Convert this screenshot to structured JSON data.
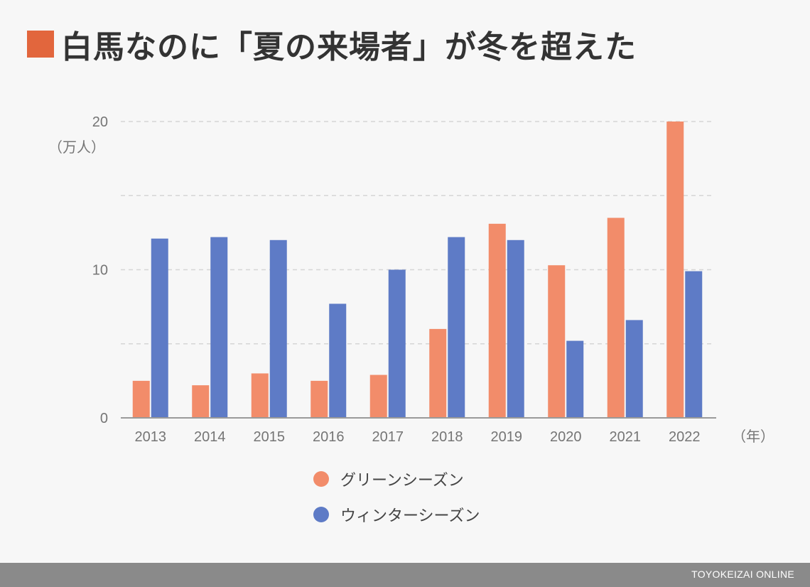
{
  "title": "白馬なのに「夏の来場者」が冬を超えた",
  "colors": {
    "title_square": "#e2663d",
    "green_season": "#f28c6a",
    "winter_season": "#5e7bc6",
    "grid": "#d6d6d6",
    "axis": "#9a9a9a",
    "footer_bg": "#8a8a8a"
  },
  "chart_data": {
    "type": "bar",
    "categories": [
      "2013",
      "2014",
      "2015",
      "2016",
      "2017",
      "2018",
      "2019",
      "2020",
      "2021",
      "2022"
    ],
    "series": [
      {
        "name": "グリーンシーズン",
        "values": [
          2.5,
          2.2,
          3.0,
          2.5,
          2.9,
          6.0,
          13.1,
          10.3,
          13.5,
          20.0
        ]
      },
      {
        "name": "ウィンターシーズン",
        "values": [
          12.1,
          12.2,
          12.0,
          7.7,
          10.0,
          12.2,
          12.0,
          5.2,
          6.6,
          9.9
        ]
      }
    ],
    "ylim": [
      0,
      20
    ],
    "y_ticks": [
      "0",
      "10",
      "20"
    ],
    "ylabel": "（万人）",
    "xlabel": "（年）",
    "grid": true,
    "legend_position": "bottom"
  },
  "footer": {
    "brand": "TOYOKEIZAI ONLINE"
  }
}
